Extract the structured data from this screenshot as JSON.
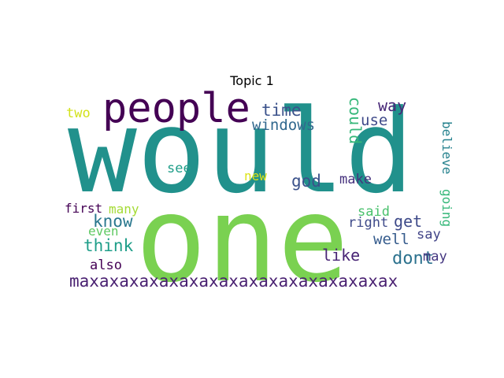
{
  "title": "Topic 1",
  "words": [
    {
      "text": "would",
      "color": "#21918c"
    },
    {
      "text": "one",
      "color": "#7ad151"
    },
    {
      "text": "people",
      "color": "#440154"
    },
    {
      "text": "time",
      "color": "#3b528b"
    },
    {
      "text": "windows",
      "color": "#31688e"
    },
    {
      "text": "could",
      "color": "#35b779"
    },
    {
      "text": "way",
      "color": "#482878"
    },
    {
      "text": "use",
      "color": "#3e4989"
    },
    {
      "text": "believe",
      "color": "#26828e"
    },
    {
      "text": "going",
      "color": "#35b779"
    },
    {
      "text": "two",
      "color": "#d2e21b"
    },
    {
      "text": "see",
      "color": "#1f9e89"
    },
    {
      "text": "new",
      "color": "#dde318"
    },
    {
      "text": "god",
      "color": "#3b528b"
    },
    {
      "text": "make",
      "color": "#46327e"
    },
    {
      "text": "first",
      "color": "#440154"
    },
    {
      "text": "many",
      "color": "#a5db36"
    },
    {
      "text": "know",
      "color": "#2a788e"
    },
    {
      "text": "even",
      "color": "#5ec962"
    },
    {
      "text": "think",
      "color": "#1f9e89"
    },
    {
      "text": "also",
      "color": "#440154"
    },
    {
      "text": "said",
      "color": "#4ac16d"
    },
    {
      "text": "right",
      "color": "#3e4a89"
    },
    {
      "text": "get",
      "color": "#3e4a89"
    },
    {
      "text": "say",
      "color": "#414487"
    },
    {
      "text": "well",
      "color": "#365c8d"
    },
    {
      "text": "like",
      "color": "#482475"
    },
    {
      "text": "dont",
      "color": "#2c728e"
    },
    {
      "text": "may",
      "color": "#453781"
    },
    {
      "text": "maxaxaxaxaxaxaxaxaxaxaxaxaxaxaxax",
      "color": "#481f70"
    }
  ]
}
